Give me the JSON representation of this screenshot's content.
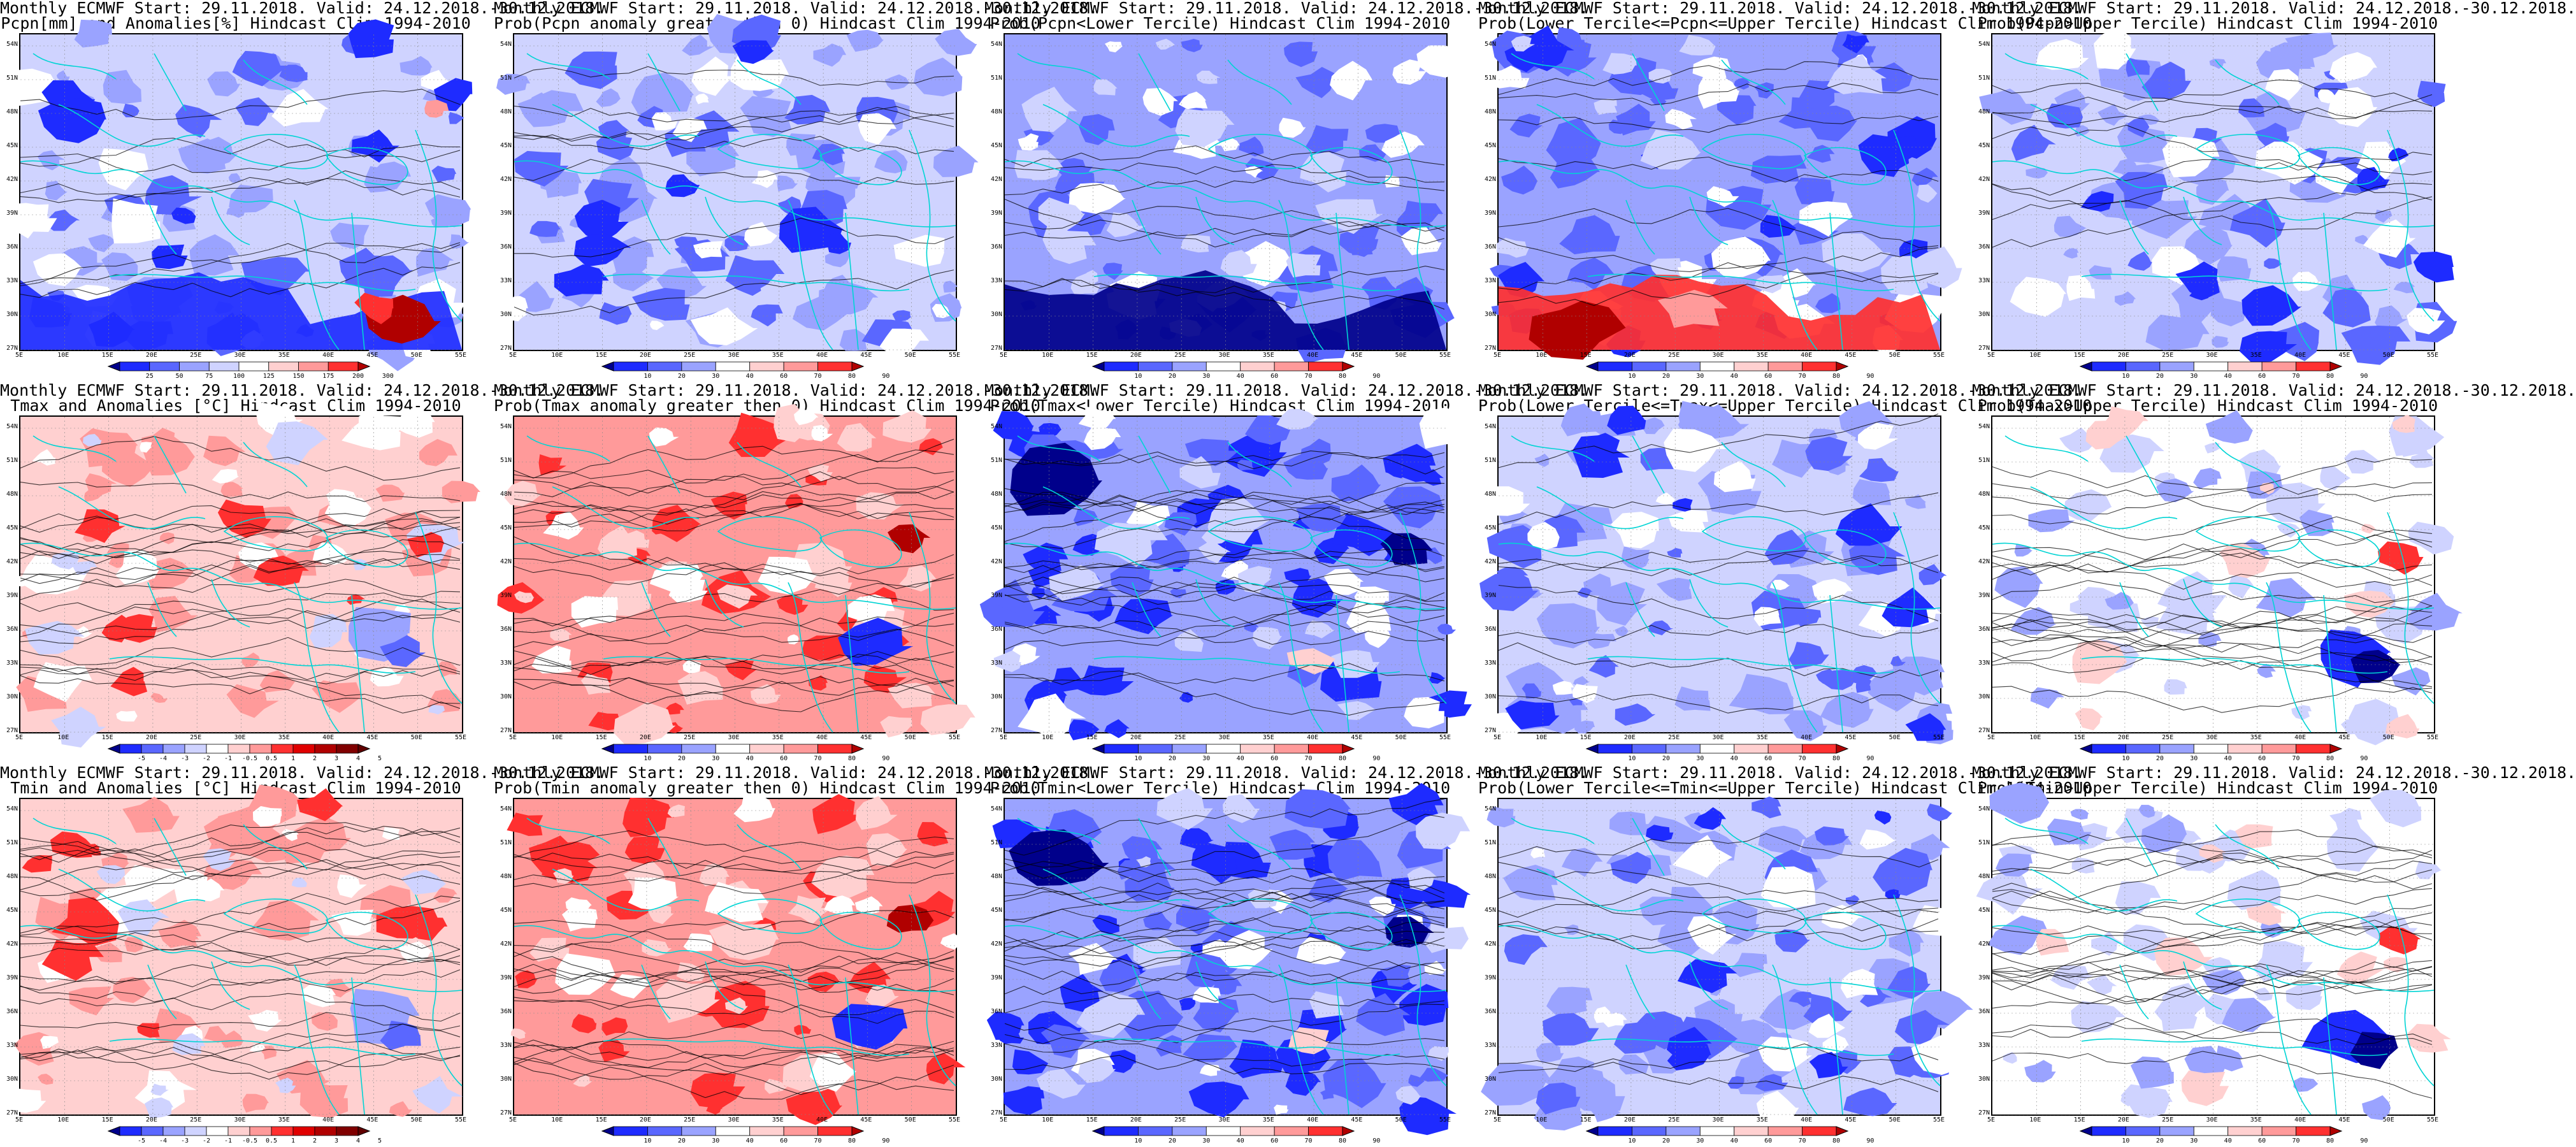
{
  "colors": {
    "dark_blue": "#00008b",
    "blue": "#1e2bff",
    "mid_blue": "#5a67ff",
    "light_blue": "#9aa3ff",
    "pale_blue": "#cfd3ff",
    "white": "#ffffff",
    "pale_red": "#ffd0d0",
    "light_red": "#ff9a9a",
    "red": "#ff3030",
    "dark_red": "#b00000",
    "coast": "#00d4d4",
    "contour": "#000000"
  },
  "lat_labels": [
    "54N",
    "51N",
    "48N",
    "45N",
    "42N",
    "39N",
    "36N",
    "33N",
    "30N",
    "27N"
  ],
  "lon_labels": [
    "5E",
    "10E",
    "15E",
    "20E",
    "25E",
    "30E",
    "35E",
    "40E",
    "45E",
    "50E",
    "55E"
  ],
  "scales": {
    "pcpn": [
      "25",
      "50",
      "75",
      "100",
      "125",
      "150",
      "175",
      "200",
      "300"
    ],
    "prob": [
      "10",
      "20",
      "30",
      "40",
      "60",
      "70",
      "80",
      "90"
    ],
    "temp": [
      "-5",
      "-4",
      "-3",
      "-2",
      "-1",
      "-0.5",
      "0.5",
      "1",
      "2",
      "3",
      "4",
      "5"
    ]
  },
  "panels": [
    {
      "line1": "Monthly ECMWF Start: 29.11.2018. Valid: 24.12.2018.-30.12.2018.",
      "line2": "Pcpn[mm] and Anomalies[%] Hindcast Clim 1994-2010",
      "scale": "pcpn",
      "theme": "precip_anom"
    },
    {
      "line1": "Monthly ECMWF Start: 29.11.2018. Valid: 24.12.2018.-30.12.2018.",
      "line2": "Prob(Pcpn anomaly greater then 0) Hindcast Clim 1994-2010",
      "scale": "prob",
      "theme": "blue_mixed"
    },
    {
      "line1": "Monthly ECMWF Start: 29.11.2018. Valid: 24.12.2018.-30.12.2018.",
      "line2": "Prob(Pcpn<Lower Tercile) Hindcast Clim 1994-2010",
      "scale": "prob",
      "theme": "blue_strong"
    },
    {
      "line1": "Monthly ECMWF Start: 29.11.2018. Valid: 24.12.2018.-30.12.2018.",
      "line2": "Prob(Lower Tercile<=Pcpn<=Upper Tercile) Hindcast Clim 1994-2010",
      "scale": "prob",
      "theme": "blue_redsouth"
    },
    {
      "line1": "Monthly ECMWF Start: 29.11.2018. Valid: 24.12.2018.-30.12.2018.",
      "line2": "Prob(Pcpn>Upper Tercile) Hindcast Clim 1994-2010",
      "scale": "prob",
      "theme": "blue_mixed"
    },
    {
      "line1": "Monthly ECMWF Start: 29.11.2018. Valid: 24.12.2018.-30.12.2018.",
      "line2": "Tmax and Anomalies [°C] Hindcast Clim 1994-2010",
      "scale": "temp",
      "theme": "red_north"
    },
    {
      "line1": "Monthly ECMWF Start: 29.11.2018. Valid: 24.12.2018.-30.12.2018.",
      "line2": "Prob(Tmax anomaly greater then 0) Hindcast Clim 1994-2010",
      "scale": "prob",
      "theme": "red_strong"
    },
    {
      "line1": "Monthly ECMWF Start: 29.11.2018. Valid: 24.12.2018.-30.12.2018.",
      "line2": "Prob(Tmax<Lower Tercile) Hindcast Clim 1994-2010",
      "scale": "prob",
      "theme": "blue_strong_nw"
    },
    {
      "line1": "Monthly ECMWF Start: 29.11.2018. Valid: 24.12.2018.-30.12.2018.",
      "line2": "Prob(Lower Tercile<=Tmax<=Upper Tercile) Hindcast Clim 1994-2010",
      "scale": "prob",
      "theme": "blue_mixed"
    },
    {
      "line1": "Monthly ECMWF Start: 29.11.2018. Valid: 24.12.2018.-30.12.2018.",
      "line2": "Prob(Tmax>Upper Tercile) Hindcast Clim 1994-2010",
      "scale": "prob",
      "theme": "white_se"
    },
    {
      "line1": "Monthly ECMWF Start: 29.11.2018. Valid: 24.12.2018.-30.12.2018.",
      "line2": "Tmin and Anomalies [°C] Hindcast Clim 1994-2010",
      "scale": "temp",
      "theme": "red_north"
    },
    {
      "line1": "Monthly ECMWF Start: 29.11.2018. Valid: 24.12.2018.-30.12.2018.",
      "line2": "Prob(Tmin anomaly greater then 0) Hindcast Clim 1994-2010",
      "scale": "prob",
      "theme": "red_strong"
    },
    {
      "line1": "Monthly ECMWF Start: 29.11.2018. Valid: 24.12.2018.-30.12.2018.",
      "line2": "Prob(Tmin<Lower Tercile) Hindcast Clim 1994-2010",
      "scale": "prob",
      "theme": "blue_strong_nw"
    },
    {
      "line1": "Monthly ECMWF Start: 29.11.2018. Valid: 24.12.2018.-30.12.2018.",
      "line2": "Prob(Lower Tercile<=Tmin<=Upper Tercile) Hindcast Clim 1994-2010",
      "scale": "prob",
      "theme": "blue_mixed"
    },
    {
      "line1": "Monthly ECMWF Start: 29.11.2018. Valid: 24.12.2018.-30.12.2018.",
      "line2": "Prob(Tmin>Upper Tercile) Hindcast Clim 1994-2010",
      "scale": "prob",
      "theme": "white_se"
    }
  ]
}
